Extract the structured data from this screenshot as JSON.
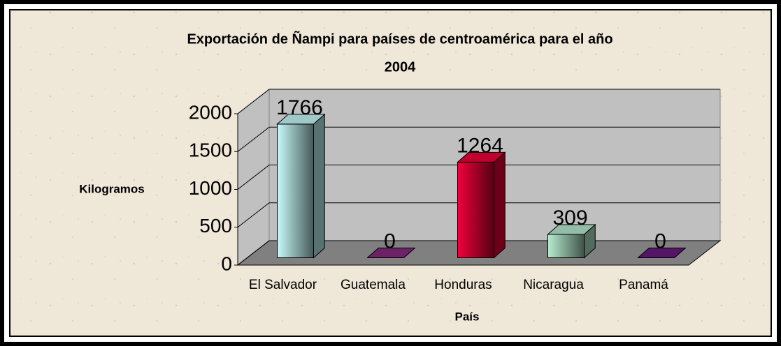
{
  "chart_data": {
    "type": "bar3d",
    "title": [
      "Exportación de Ñampi para países de centroamérica para el año",
      "2004"
    ],
    "x_label": "País",
    "y_label": "Kilogramos",
    "categories": [
      "El Salvador",
      "Guatemala",
      "Honduras",
      "Nicaragua",
      "Panamá"
    ],
    "values": [
      1766,
      0,
      1264,
      309,
      0
    ],
    "colors": [
      "#c8fafa",
      "#8a2a80",
      "#f0003a",
      "#b8ecd0",
      "#6a1a80"
    ],
    "ylim": [
      0,
      2000
    ],
    "yticks": [
      0,
      500,
      1000,
      1500,
      2000
    ],
    "grid": true
  }
}
